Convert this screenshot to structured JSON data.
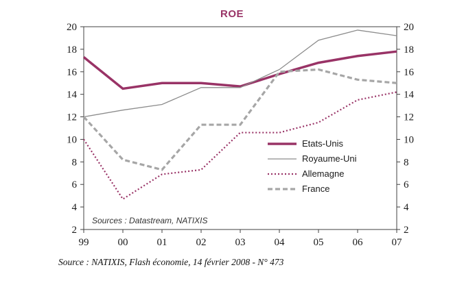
{
  "title": "ROE",
  "caption": "Source : NATIXIS, Flash économie, 14 février 2008 - N° 473",
  "colors": {
    "accent_magenta": "#993366",
    "gray_line": "#8c8c8c",
    "gray_dash": "#a6a6a6",
    "axis": "#404040",
    "text": "#1a1a1a"
  },
  "chart_data": {
    "type": "line",
    "title": "ROE",
    "x_categories": [
      "99",
      "00",
      "01",
      "02",
      "03",
      "04",
      "05",
      "06",
      "07"
    ],
    "ylim": [
      2,
      20
    ],
    "ytick_step": 2,
    "grid": false,
    "legend_position": "inside-right",
    "dual_y_axis": true,
    "inner_source_note": "Sources : Datastream, NATIXIS",
    "series": [
      {
        "name": "Etats-Unis",
        "values": [
          17.3,
          14.5,
          15.0,
          15.0,
          14.7,
          15.8,
          16.8,
          17.4,
          17.8
        ],
        "color": "#993366",
        "width": 3.5,
        "dash": ""
      },
      {
        "name": "Royaume-Uni",
        "values": [
          12.0,
          12.6,
          13.1,
          14.6,
          14.6,
          16.2,
          18.8,
          19.7,
          19.2
        ],
        "color": "#8c8c8c",
        "width": 1.3,
        "dash": ""
      },
      {
        "name": "Allemagne",
        "values": [
          10.0,
          4.7,
          6.9,
          7.3,
          10.6,
          10.6,
          11.5,
          13.5,
          14.2
        ],
        "color": "#993366",
        "width": 2.2,
        "dash": "2 3"
      },
      {
        "name": "France",
        "values": [
          12.0,
          8.2,
          7.3,
          11.3,
          11.3,
          16.0,
          16.2,
          15.3,
          15.0
        ],
        "color": "#a6a6a6",
        "width": 3.2,
        "dash": "7 4"
      }
    ]
  }
}
